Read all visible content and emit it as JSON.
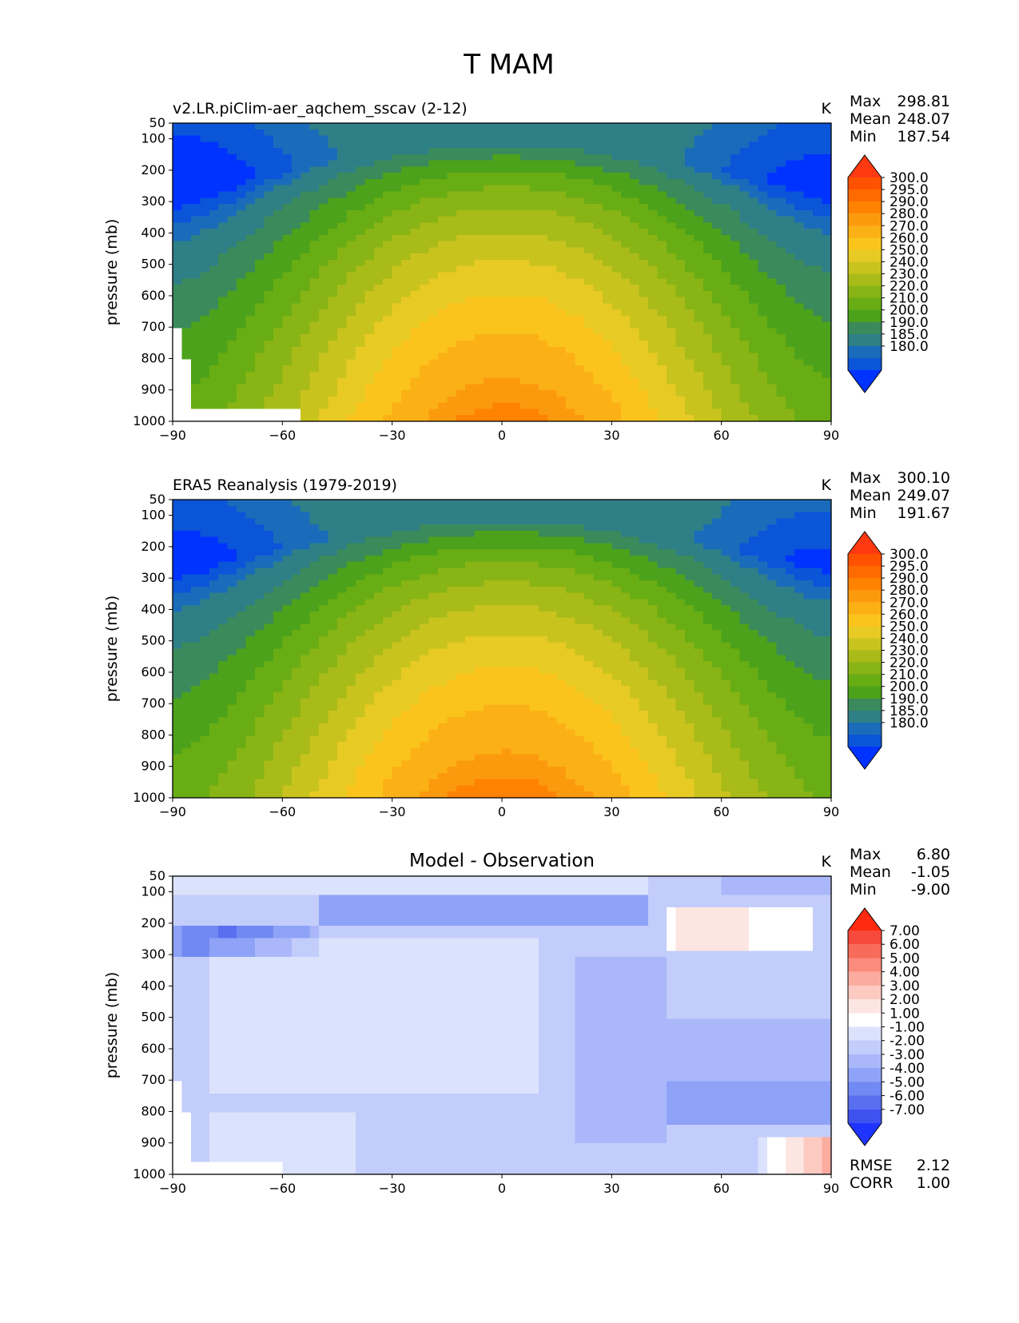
{
  "figure_title": "T MAM",
  "chart_data": [
    {
      "type": "contour",
      "title": "v2.LR.piClim-aer_aqchem_sscav (2-12)",
      "units": "K",
      "xlabel": "",
      "ylabel": "pressure (mb)",
      "xlim": [
        -90,
        90
      ],
      "ylim": [
        1000,
        50
      ],
      "xticks": [
        "−90",
        "−60",
        "−30",
        "0",
        "30",
        "60",
        "90"
      ],
      "yticks": [
        "50",
        "100",
        "200",
        "300",
        "400",
        "500",
        "600",
        "700",
        "800",
        "900",
        "1000"
      ],
      "stats": {
        "max_label": "Max",
        "max": "298.81",
        "mean_label": "Mean",
        "mean": "248.07",
        "min_label": "Min",
        "min": "187.54"
      },
      "colorbar_levels": [
        "300.0",
        "295.0",
        "290.0",
        "280.0",
        "270.0",
        "260.0",
        "250.0",
        "240.0",
        "230.0",
        "220.0",
        "210.0",
        "200.0",
        "190.0",
        "185.0",
        "180.0"
      ],
      "colorbar_colors": [
        "#ff3a12",
        "#ff5200",
        "#ff6a00",
        "#ff8300",
        "#fc9a0e",
        "#fbb116",
        "#fbc41d",
        "#e8ca24",
        "#c9c31e",
        "#a8bb18",
        "#88b415",
        "#68ad13",
        "#4ca21a",
        "#3b8a5b",
        "#2f7f86",
        "#1a6cbb",
        "#0b55d8",
        "#0033ff"
      ]
    },
    {
      "type": "contour",
      "title": "ERA5 Reanalysis (1979-2019)",
      "units": "K",
      "xlabel": "",
      "ylabel": "pressure (mb)",
      "xlim": [
        -90,
        90
      ],
      "ylim": [
        1000,
        50
      ],
      "xticks": [
        "−90",
        "−60",
        "−30",
        "0",
        "30",
        "60",
        "90"
      ],
      "yticks": [
        "50",
        "100",
        "200",
        "300",
        "400",
        "500",
        "600",
        "700",
        "800",
        "900",
        "1000"
      ],
      "stats": {
        "max_label": "Max",
        "max": "300.10",
        "mean_label": "Mean",
        "mean": "249.07",
        "min_label": "Min",
        "min": "191.67"
      },
      "colorbar_levels": [
        "300.0",
        "295.0",
        "290.0",
        "280.0",
        "270.0",
        "260.0",
        "250.0",
        "240.0",
        "230.0",
        "220.0",
        "210.0",
        "200.0",
        "190.0",
        "185.0",
        "180.0"
      ],
      "colorbar_colors": [
        "#ff3a12",
        "#ff5200",
        "#ff6a00",
        "#ff8300",
        "#fc9a0e",
        "#fbb116",
        "#fbc41d",
        "#e8ca24",
        "#c9c31e",
        "#a8bb18",
        "#88b415",
        "#68ad13",
        "#4ca21a",
        "#3b8a5b",
        "#2f7f86",
        "#1a6cbb",
        "#0b55d8",
        "#0033ff"
      ]
    },
    {
      "type": "contour",
      "title": "Model - Observation",
      "units": "K",
      "xlabel": "",
      "ylabel": "pressure (mb)",
      "xlim": [
        -90,
        90
      ],
      "ylim": [
        1000,
        50
      ],
      "xticks": [
        "−90",
        "−60",
        "−30",
        "0",
        "30",
        "60",
        "90"
      ],
      "yticks": [
        "50",
        "100",
        "200",
        "300",
        "400",
        "500",
        "600",
        "700",
        "800",
        "900",
        "1000"
      ],
      "stats": {
        "max_label": "Max",
        "max": "6.80",
        "mean_label": "Mean",
        "mean": "-1.05",
        "min_label": "Min",
        "min": "-9.00",
        "rmse_label": "RMSE",
        "rmse": "2.12",
        "corr_label": "CORR",
        "corr": "1.00"
      },
      "colorbar_levels": [
        "7.00",
        "6.00",
        "5.00",
        "4.00",
        "3.00",
        "2.00",
        "1.00",
        "-1.00",
        "-2.00",
        "-3.00",
        "-4.00",
        "-5.00",
        "-6.00",
        "-7.00"
      ],
      "colorbar_colors": [
        "#ff2a10",
        "#f74a3c",
        "#f86a5a",
        "#fb8b7c",
        "#fcab9f",
        "#fdcac1",
        "#fde6e2",
        "#ffffff",
        "#dbe2fc",
        "#c3cdfb",
        "#aab8fa",
        "#8ea2f7",
        "#7189f3",
        "#5a6ef0",
        "#3f52f0",
        "#1f35ff"
      ]
    }
  ]
}
